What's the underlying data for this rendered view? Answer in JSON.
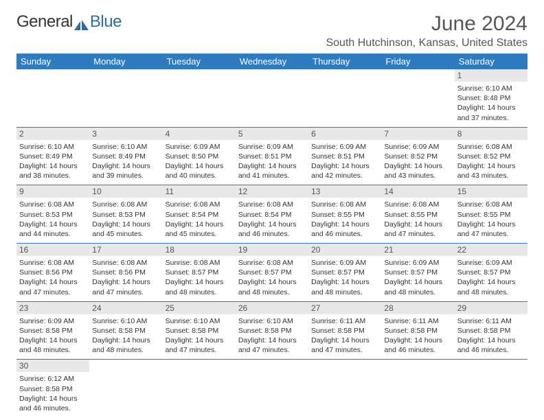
{
  "logo": {
    "part1": "General",
    "part2": "Blue"
  },
  "title": "June 2024",
  "location": "South Hutchinson, Kansas, United States",
  "colors": {
    "header_bg": "#2e7bbf",
    "header_text": "#ffffff",
    "daynum_bg": "#e8e8e8",
    "text": "#333333",
    "accent": "#2e6da4"
  },
  "dayHeaders": [
    "Sunday",
    "Monday",
    "Tuesday",
    "Wednesday",
    "Thursday",
    "Friday",
    "Saturday"
  ],
  "weeks": [
    [
      null,
      null,
      null,
      null,
      null,
      null,
      {
        "n": "1",
        "sr": "6:10 AM",
        "ss": "8:48 PM",
        "dl": "14 hours and 37 minutes."
      }
    ],
    [
      {
        "n": "2",
        "sr": "6:10 AM",
        "ss": "8:49 PM",
        "dl": "14 hours and 38 minutes."
      },
      {
        "n": "3",
        "sr": "6:10 AM",
        "ss": "8:49 PM",
        "dl": "14 hours and 39 minutes."
      },
      {
        "n": "4",
        "sr": "6:09 AM",
        "ss": "8:50 PM",
        "dl": "14 hours and 40 minutes."
      },
      {
        "n": "5",
        "sr": "6:09 AM",
        "ss": "8:51 PM",
        "dl": "14 hours and 41 minutes."
      },
      {
        "n": "6",
        "sr": "6:09 AM",
        "ss": "8:51 PM",
        "dl": "14 hours and 42 minutes."
      },
      {
        "n": "7",
        "sr": "6:09 AM",
        "ss": "8:52 PM",
        "dl": "14 hours and 43 minutes."
      },
      {
        "n": "8",
        "sr": "6:08 AM",
        "ss": "8:52 PM",
        "dl": "14 hours and 43 minutes."
      }
    ],
    [
      {
        "n": "9",
        "sr": "6:08 AM",
        "ss": "8:53 PM",
        "dl": "14 hours and 44 minutes."
      },
      {
        "n": "10",
        "sr": "6:08 AM",
        "ss": "8:53 PM",
        "dl": "14 hours and 45 minutes."
      },
      {
        "n": "11",
        "sr": "6:08 AM",
        "ss": "8:54 PM",
        "dl": "14 hours and 45 minutes."
      },
      {
        "n": "12",
        "sr": "6:08 AM",
        "ss": "8:54 PM",
        "dl": "14 hours and 46 minutes."
      },
      {
        "n": "13",
        "sr": "6:08 AM",
        "ss": "8:55 PM",
        "dl": "14 hours and 46 minutes."
      },
      {
        "n": "14",
        "sr": "6:08 AM",
        "ss": "8:55 PM",
        "dl": "14 hours and 47 minutes."
      },
      {
        "n": "15",
        "sr": "6:08 AM",
        "ss": "8:55 PM",
        "dl": "14 hours and 47 minutes."
      }
    ],
    [
      {
        "n": "16",
        "sr": "6:08 AM",
        "ss": "8:56 PM",
        "dl": "14 hours and 47 minutes."
      },
      {
        "n": "17",
        "sr": "6:08 AM",
        "ss": "8:56 PM",
        "dl": "14 hours and 47 minutes."
      },
      {
        "n": "18",
        "sr": "6:08 AM",
        "ss": "8:57 PM",
        "dl": "14 hours and 48 minutes."
      },
      {
        "n": "19",
        "sr": "6:08 AM",
        "ss": "8:57 PM",
        "dl": "14 hours and 48 minutes."
      },
      {
        "n": "20",
        "sr": "6:09 AM",
        "ss": "8:57 PM",
        "dl": "14 hours and 48 minutes."
      },
      {
        "n": "21",
        "sr": "6:09 AM",
        "ss": "8:57 PM",
        "dl": "14 hours and 48 minutes."
      },
      {
        "n": "22",
        "sr": "6:09 AM",
        "ss": "8:57 PM",
        "dl": "14 hours and 48 minutes."
      }
    ],
    [
      {
        "n": "23",
        "sr": "6:09 AM",
        "ss": "8:58 PM",
        "dl": "14 hours and 48 minutes."
      },
      {
        "n": "24",
        "sr": "6:10 AM",
        "ss": "8:58 PM",
        "dl": "14 hours and 48 minutes."
      },
      {
        "n": "25",
        "sr": "6:10 AM",
        "ss": "8:58 PM",
        "dl": "14 hours and 47 minutes."
      },
      {
        "n": "26",
        "sr": "6:10 AM",
        "ss": "8:58 PM",
        "dl": "14 hours and 47 minutes."
      },
      {
        "n": "27",
        "sr": "6:11 AM",
        "ss": "8:58 PM",
        "dl": "14 hours and 47 minutes."
      },
      {
        "n": "28",
        "sr": "6:11 AM",
        "ss": "8:58 PM",
        "dl": "14 hours and 46 minutes."
      },
      {
        "n": "29",
        "sr": "6:11 AM",
        "ss": "8:58 PM",
        "dl": "14 hours and 46 minutes."
      }
    ],
    [
      {
        "n": "30",
        "sr": "6:12 AM",
        "ss": "8:58 PM",
        "dl": "14 hours and 46 minutes."
      },
      null,
      null,
      null,
      null,
      null,
      null
    ]
  ],
  "labels": {
    "sunrise": "Sunrise:",
    "sunset": "Sunset:",
    "daylight": "Daylight:"
  }
}
